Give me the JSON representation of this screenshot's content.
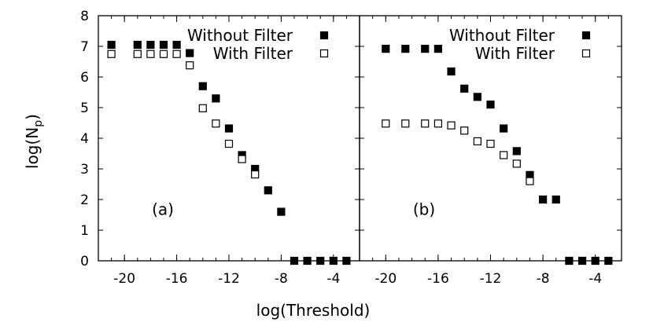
{
  "chart_data": [
    {
      "type": "scatter",
      "panel_label": "(a)",
      "xlim": [
        -22,
        -2
      ],
      "ylim": [
        0,
        8
      ],
      "xticks": [
        -20,
        -16,
        -12,
        -8,
        -4
      ],
      "yticks": [
        0,
        1,
        2,
        3,
        4,
        5,
        6,
        7,
        8
      ],
      "legend_position": "top-right",
      "series": [
        {
          "name": "Without Filter",
          "marker": "filled-square",
          "x": [
            -21,
            -19,
            -18,
            -17,
            -16,
            -15,
            -14,
            -13,
            -12,
            -11,
            -10,
            -9,
            -8,
            -7,
            -6,
            -5,
            -4,
            -3
          ],
          "y": [
            7.05,
            7.05,
            7.05,
            7.05,
            7.05,
            6.78,
            5.7,
            5.3,
            4.32,
            3.45,
            3.0,
            2.3,
            1.6,
            0,
            0,
            0,
            0,
            0
          ]
        },
        {
          "name": "With Filter",
          "marker": "open-square",
          "x": [
            -21,
            -19,
            -18,
            -17,
            -16,
            -15,
            -14,
            -13,
            -12,
            -11,
            -10
          ],
          "y": [
            6.75,
            6.75,
            6.75,
            6.75,
            6.75,
            6.38,
            4.98,
            4.48,
            3.82,
            3.32,
            2.82
          ]
        }
      ]
    },
    {
      "type": "scatter",
      "panel_label": "(b)",
      "xlim": [
        -22,
        -2
      ],
      "ylim": [
        0,
        8
      ],
      "xticks": [
        -20,
        -16,
        -12,
        -8,
        -4
      ],
      "yticks": [
        0,
        1,
        2,
        3,
        4,
        5,
        6,
        7,
        8
      ],
      "legend_position": "top-right",
      "series": [
        {
          "name": "Without Filter",
          "marker": "filled-square",
          "x": [
            -20,
            -18.5,
            -17,
            -16,
            -15,
            -14,
            -13,
            -12,
            -11,
            -10,
            -9,
            -8,
            -7,
            -6,
            -5,
            -4,
            -3
          ],
          "y": [
            6.92,
            6.92,
            6.92,
            6.92,
            6.18,
            5.62,
            5.35,
            5.1,
            4.32,
            3.58,
            2.8,
            2.0,
            2.0,
            0,
            0,
            0,
            0
          ]
        },
        {
          "name": "With Filter",
          "marker": "open-square",
          "x": [
            -20,
            -18.5,
            -17,
            -16,
            -15,
            -14,
            -13,
            -12,
            -11,
            -10,
            -9
          ],
          "y": [
            4.48,
            4.48,
            4.48,
            4.48,
            4.42,
            4.25,
            3.9,
            3.82,
            3.45,
            3.17,
            2.6
          ]
        }
      ]
    }
  ],
  "axes": {
    "ylabel_main": "log(N",
    "ylabel_sub": "p",
    "ylabel_close": ")",
    "xlabel": "log(Threshold)"
  }
}
